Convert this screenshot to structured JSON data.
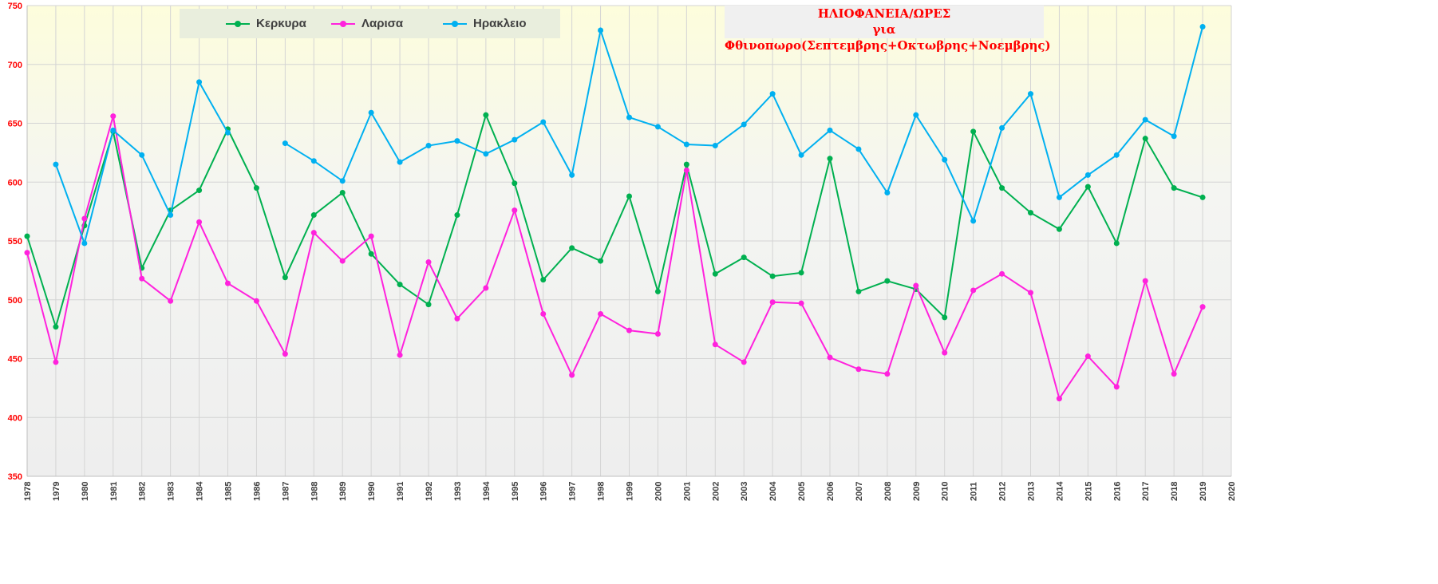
{
  "chart_data": {
    "type": "line",
    "title": "ΗΛΙΟΦΑΝΕΙΑ/ΩΡΕΣ",
    "subtitle": "για Φθινοπωρο(Σεπτεμβρης+Οκτωβρης+Νοεμβρης)",
    "xlabel": "",
    "ylabel": "",
    "x": [
      1978,
      1979,
      1980,
      1981,
      1982,
      1983,
      1984,
      1985,
      1986,
      1987,
      1988,
      1989,
      1990,
      1991,
      1992,
      1993,
      1994,
      1995,
      1996,
      1997,
      1998,
      1999,
      2000,
      2001,
      2002,
      2003,
      2004,
      2005,
      2006,
      2007,
      2008,
      2009,
      2010,
      2011,
      2012,
      2013,
      2014,
      2015,
      2016,
      2017,
      2018,
      2019
    ],
    "xlim": [
      1978,
      2020
    ],
    "xticks": [
      1978,
      1979,
      1980,
      1981,
      1982,
      1983,
      1984,
      1985,
      1986,
      1987,
      1988,
      1989,
      1990,
      1991,
      1992,
      1993,
      1994,
      1995,
      1996,
      1997,
      1998,
      1999,
      2000,
      2001,
      2002,
      2003,
      2004,
      2005,
      2006,
      2007,
      2008,
      2009,
      2010,
      2011,
      2012,
      2013,
      2014,
      2015,
      2016,
      2017,
      2018,
      2019,
      2020
    ],
    "ylim": [
      350,
      750
    ],
    "yticks": [
      350,
      400,
      450,
      500,
      550,
      600,
      650,
      700,
      750
    ],
    "grid": true,
    "legend_position": "top-left",
    "series": [
      {
        "name": "Κερκυρα",
        "color": "#00b050",
        "values": [
          554,
          477,
          563,
          643,
          527,
          576,
          593,
          645,
          595,
          519,
          572,
          591,
          539,
          513,
          496,
          572,
          657,
          599,
          517,
          544,
          533,
          588,
          507,
          615,
          522,
          536,
          520,
          523,
          620,
          507,
          516,
          509,
          485,
          643,
          595,
          574,
          560,
          596,
          548,
          637,
          595,
          587
        ]
      },
      {
        "name": "Λαρισα",
        "color": "#ff22dd",
        "values": [
          540,
          447,
          569,
          656,
          518,
          499,
          566,
          514,
          499,
          454,
          557,
          533,
          554,
          453,
          532,
          484,
          510,
          576,
          488,
          436,
          488,
          474,
          471,
          610,
          462,
          447,
          498,
          497,
          451,
          441,
          437,
          512,
          455,
          508,
          522,
          506,
          416,
          452,
          426,
          516,
          437,
          494
        ]
      },
      {
        "name": "Ηρακλειο",
        "color": "#00b0f0",
        "values": [
          null,
          615,
          548,
          644,
          623,
          572,
          685,
          642,
          null,
          633,
          618,
          601,
          659,
          617,
          631,
          635,
          624,
          636,
          651,
          606,
          729,
          655,
          647,
          632,
          631,
          649,
          675,
          623,
          644,
          628,
          591,
          657,
          619,
          567,
          646,
          675,
          587,
          606,
          623,
          653,
          639,
          732
        ]
      }
    ]
  }
}
